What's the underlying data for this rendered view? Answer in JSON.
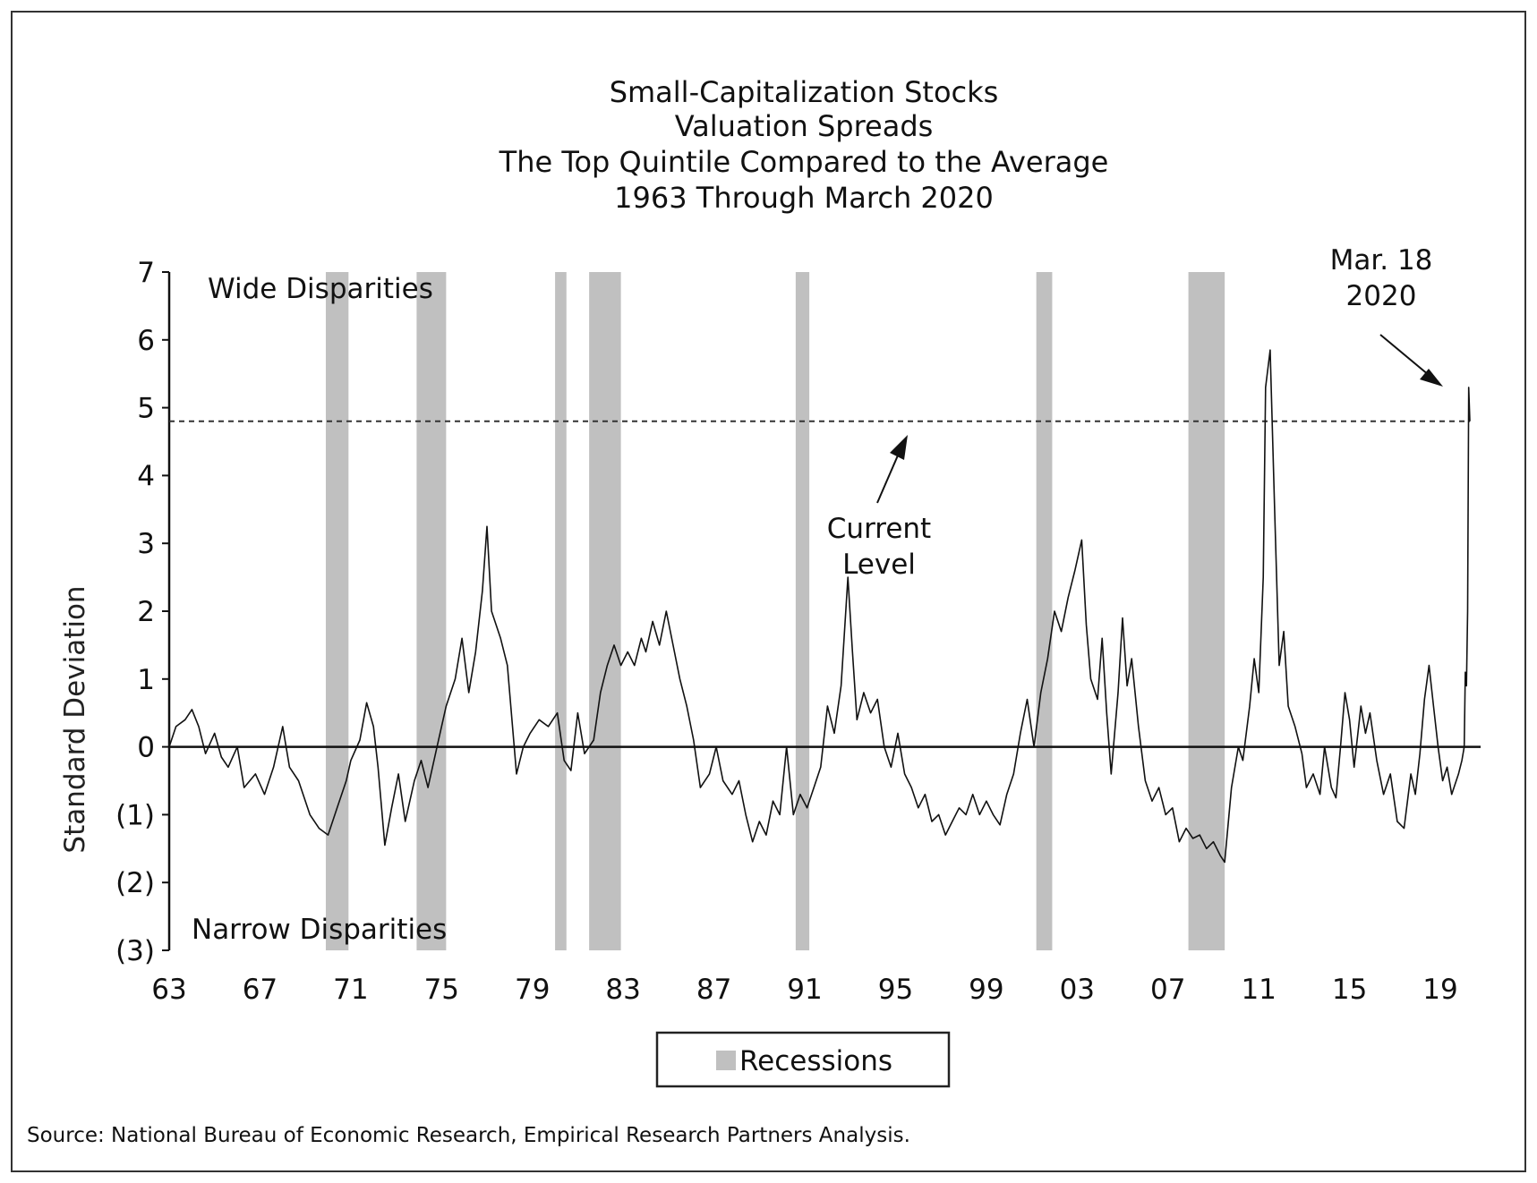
{
  "chart_data": {
    "type": "line",
    "title_lines": [
      "Small-Capitalization Stocks",
      "Valuation Spreads",
      "The Top Quintile Compared to the Average",
      "1963 Through March 2020"
    ],
    "ylabel": "Standard Deviation",
    "xlabel": "",
    "ylim": [
      -3,
      7
    ],
    "xlim": [
      1963,
      2020.3
    ],
    "y_ticks": [
      {
        "value": 7,
        "label": "7"
      },
      {
        "value": 6,
        "label": "6"
      },
      {
        "value": 5,
        "label": "5"
      },
      {
        "value": 4,
        "label": "4"
      },
      {
        "value": 3,
        "label": "3"
      },
      {
        "value": 2,
        "label": "2"
      },
      {
        "value": 1,
        "label": "1"
      },
      {
        "value": 0,
        "label": "0"
      },
      {
        "value": -1,
        "label": "(1)"
      },
      {
        "value": -2,
        "label": "(2)"
      },
      {
        "value": -3,
        "label": "(3)"
      }
    ],
    "x_ticks": [
      {
        "value": 1963,
        "label": "63"
      },
      {
        "value": 1967,
        "label": "67"
      },
      {
        "value": 1971,
        "label": "71"
      },
      {
        "value": 1975,
        "label": "75"
      },
      {
        "value": 1979,
        "label": "79"
      },
      {
        "value": 1983,
        "label": "83"
      },
      {
        "value": 1987,
        "label": "87"
      },
      {
        "value": 1991,
        "label": "91"
      },
      {
        "value": 1995,
        "label": "95"
      },
      {
        "value": 1999,
        "label": "99"
      },
      {
        "value": 2003,
        "label": "03"
      },
      {
        "value": 2007,
        "label": "07"
      },
      {
        "value": 2011,
        "label": "11"
      },
      {
        "value": 2015,
        "label": "15"
      },
      {
        "value": 2019,
        "label": "19"
      }
    ],
    "recessions": [
      [
        1969.9,
        1970.9
      ],
      [
        1973.9,
        1975.2
      ],
      [
        1980.0,
        1980.5
      ],
      [
        1981.5,
        1982.9
      ],
      [
        1990.6,
        1991.2
      ],
      [
        2001.2,
        2001.9
      ],
      [
        2007.9,
        2009.5
      ]
    ],
    "current_level": 4.8,
    "annotations": {
      "wide": "Wide Disparities",
      "narrow": "Narrow Disparities",
      "current_line1": "Current",
      "current_line2": "Level",
      "mar_line1": "Mar. 18",
      "mar_line2": "2020"
    },
    "legend": {
      "label": "Recessions",
      "color": "#c0c0c0"
    },
    "source": "Source: National Bureau of Economic Research, Empirical Research Partners Analysis.",
    "colors": {
      "line": "#111111",
      "recession": "#c0c0c0"
    },
    "series": [
      {
        "points": [
          [
            1963.0,
            0.0
          ],
          [
            1963.3,
            0.3
          ],
          [
            1963.7,
            0.4
          ],
          [
            1964.0,
            0.55
          ],
          [
            1964.3,
            0.3
          ],
          [
            1964.6,
            -0.1
          ],
          [
            1965.0,
            0.2
          ],
          [
            1965.3,
            -0.15
          ],
          [
            1965.6,
            -0.3
          ],
          [
            1966.0,
            0.0
          ],
          [
            1966.3,
            -0.6
          ],
          [
            1966.8,
            -0.4
          ],
          [
            1967.2,
            -0.7
          ],
          [
            1967.6,
            -0.3
          ],
          [
            1968.0,
            0.3
          ],
          [
            1968.3,
            -0.3
          ],
          [
            1968.7,
            -0.5
          ],
          [
            1969.2,
            -1.0
          ],
          [
            1969.6,
            -1.2
          ],
          [
            1970.0,
            -1.3
          ],
          [
            1970.4,
            -0.9
          ],
          [
            1970.8,
            -0.5
          ],
          [
            1971.0,
            -0.2
          ],
          [
            1971.4,
            0.1
          ],
          [
            1971.7,
            0.65
          ],
          [
            1972.0,
            0.3
          ],
          [
            1972.2,
            -0.3
          ],
          [
            1972.5,
            -1.45
          ],
          [
            1972.8,
            -0.9
          ],
          [
            1973.1,
            -0.4
          ],
          [
            1973.4,
            -1.1
          ],
          [
            1973.8,
            -0.5
          ],
          [
            1974.1,
            -0.2
          ],
          [
            1974.4,
            -0.6
          ],
          [
            1974.8,
            0.0
          ],
          [
            1975.2,
            0.6
          ],
          [
            1975.6,
            1.0
          ],
          [
            1975.9,
            1.6
          ],
          [
            1976.2,
            0.8
          ],
          [
            1976.5,
            1.4
          ],
          [
            1976.8,
            2.3
          ],
          [
            1977.0,
            3.25
          ],
          [
            1977.2,
            2.0
          ],
          [
            1977.6,
            1.6
          ],
          [
            1977.9,
            1.2
          ],
          [
            1978.1,
            0.4
          ],
          [
            1978.3,
            -0.4
          ],
          [
            1978.6,
            0.0
          ],
          [
            1978.9,
            0.2
          ],
          [
            1979.3,
            0.4
          ],
          [
            1979.7,
            0.3
          ],
          [
            1980.1,
            0.5
          ],
          [
            1980.4,
            -0.2
          ],
          [
            1980.7,
            -0.35
          ],
          [
            1981.0,
            0.5
          ],
          [
            1981.3,
            -0.1
          ],
          [
            1981.7,
            0.1
          ],
          [
            1982.0,
            0.8
          ],
          [
            1982.3,
            1.2
          ],
          [
            1982.6,
            1.5
          ],
          [
            1982.9,
            1.2
          ],
          [
            1983.2,
            1.4
          ],
          [
            1983.5,
            1.2
          ],
          [
            1983.8,
            1.6
          ],
          [
            1984.0,
            1.4
          ],
          [
            1984.3,
            1.85
          ],
          [
            1984.6,
            1.5
          ],
          [
            1984.9,
            2.0
          ],
          [
            1985.2,
            1.5
          ],
          [
            1985.5,
            1.0
          ],
          [
            1985.8,
            0.6
          ],
          [
            1986.1,
            0.1
          ],
          [
            1986.4,
            -0.6
          ],
          [
            1986.8,
            -0.4
          ],
          [
            1987.1,
            0.0
          ],
          [
            1987.4,
            -0.5
          ],
          [
            1987.8,
            -0.7
          ],
          [
            1988.1,
            -0.5
          ],
          [
            1988.4,
            -1.0
          ],
          [
            1988.7,
            -1.4
          ],
          [
            1989.0,
            -1.1
          ],
          [
            1989.3,
            -1.3
          ],
          [
            1989.6,
            -0.8
          ],
          [
            1989.9,
            -1.0
          ],
          [
            1990.2,
            0.0
          ],
          [
            1990.5,
            -1.0
          ],
          [
            1990.8,
            -0.7
          ],
          [
            1991.1,
            -0.9
          ],
          [
            1991.4,
            -0.6
          ],
          [
            1991.7,
            -0.3
          ],
          [
            1992.0,
            0.6
          ],
          [
            1992.3,
            0.2
          ],
          [
            1992.6,
            0.9
          ],
          [
            1992.9,
            2.5
          ],
          [
            1993.1,
            1.4
          ],
          [
            1993.3,
            0.4
          ],
          [
            1993.6,
            0.8
          ],
          [
            1993.9,
            0.5
          ],
          [
            1994.2,
            0.7
          ],
          [
            1994.5,
            0.0
          ],
          [
            1994.8,
            -0.3
          ],
          [
            1995.1,
            0.2
          ],
          [
            1995.4,
            -0.4
          ],
          [
            1995.7,
            -0.6
          ],
          [
            1996.0,
            -0.9
          ],
          [
            1996.3,
            -0.7
          ],
          [
            1996.6,
            -1.1
          ],
          [
            1996.9,
            -1.0
          ],
          [
            1997.2,
            -1.3
          ],
          [
            1997.5,
            -1.1
          ],
          [
            1997.8,
            -0.9
          ],
          [
            1998.1,
            -1.0
          ],
          [
            1998.4,
            -0.7
          ],
          [
            1998.7,
            -1.0
          ],
          [
            1999.0,
            -0.8
          ],
          [
            1999.3,
            -1.0
          ],
          [
            1999.6,
            -1.15
          ],
          [
            1999.9,
            -0.7
          ],
          [
            2000.2,
            -0.4
          ],
          [
            2000.5,
            0.2
          ],
          [
            2000.8,
            0.7
          ],
          [
            2001.1,
            0.0
          ],
          [
            2001.4,
            0.8
          ],
          [
            2001.7,
            1.3
          ],
          [
            2002.0,
            2.0
          ],
          [
            2002.3,
            1.7
          ],
          [
            2002.6,
            2.2
          ],
          [
            2002.9,
            2.6
          ],
          [
            2003.2,
            3.05
          ],
          [
            2003.4,
            1.8
          ],
          [
            2003.6,
            1.0
          ],
          [
            2003.9,
            0.7
          ],
          [
            2004.1,
            1.6
          ],
          [
            2004.3,
            0.5
          ],
          [
            2004.5,
            -0.4
          ],
          [
            2004.8,
            0.8
          ],
          [
            2005.0,
            1.9
          ],
          [
            2005.2,
            0.9
          ],
          [
            2005.4,
            1.3
          ],
          [
            2005.7,
            0.3
          ],
          [
            2006.0,
            -0.5
          ],
          [
            2006.3,
            -0.8
          ],
          [
            2006.6,
            -0.6
          ],
          [
            2006.9,
            -1.0
          ],
          [
            2007.2,
            -0.9
          ],
          [
            2007.5,
            -1.4
          ],
          [
            2007.8,
            -1.2
          ],
          [
            2008.1,
            -1.35
          ],
          [
            2008.4,
            -1.3
          ],
          [
            2008.7,
            -1.5
          ],
          [
            2009.0,
            -1.4
          ],
          [
            2009.3,
            -1.6
          ],
          [
            2009.5,
            -1.7
          ],
          [
            2009.8,
            -0.6
          ],
          [
            2010.1,
            0.0
          ],
          [
            2010.3,
            -0.2
          ],
          [
            2010.6,
            0.6
          ],
          [
            2010.8,
            1.3
          ],
          [
            2011.0,
            0.8
          ],
          [
            2011.2,
            2.5
          ],
          [
            2011.3,
            5.3
          ],
          [
            2011.5,
            5.85
          ],
          [
            2011.7,
            3.5
          ],
          [
            2011.9,
            1.2
          ],
          [
            2012.1,
            1.7
          ],
          [
            2012.3,
            0.6
          ],
          [
            2012.6,
            0.3
          ],
          [
            2012.9,
            -0.1
          ],
          [
            2013.1,
            -0.6
          ],
          [
            2013.4,
            -0.4
          ],
          [
            2013.7,
            -0.7
          ],
          [
            2013.9,
            0.0
          ],
          [
            2014.2,
            -0.6
          ],
          [
            2014.4,
            -0.75
          ],
          [
            2014.6,
            0.0
          ],
          [
            2014.8,
            0.8
          ],
          [
            2015.0,
            0.4
          ],
          [
            2015.2,
            -0.3
          ],
          [
            2015.5,
            0.6
          ],
          [
            2015.7,
            0.2
          ],
          [
            2015.9,
            0.5
          ],
          [
            2016.2,
            -0.2
          ],
          [
            2016.5,
            -0.7
          ],
          [
            2016.8,
            -0.4
          ],
          [
            2017.1,
            -1.1
          ],
          [
            2017.4,
            -1.2
          ],
          [
            2017.7,
            -0.4
          ],
          [
            2017.9,
            -0.7
          ],
          [
            2018.1,
            -0.1
          ],
          [
            2018.3,
            0.7
          ],
          [
            2018.5,
            1.2
          ],
          [
            2018.7,
            0.6
          ],
          [
            2018.9,
            0.0
          ],
          [
            2019.1,
            -0.5
          ],
          [
            2019.3,
            -0.3
          ],
          [
            2019.5,
            -0.7
          ],
          [
            2019.8,
            -0.4
          ],
          [
            2019.95,
            -0.2
          ],
          [
            2020.05,
            0.0
          ],
          [
            2020.1,
            1.1
          ],
          [
            2020.15,
            0.9
          ],
          [
            2020.2,
            2.0
          ],
          [
            2020.25,
            5.3
          ],
          [
            2020.3,
            4.8
          ]
        ]
      }
    ]
  }
}
